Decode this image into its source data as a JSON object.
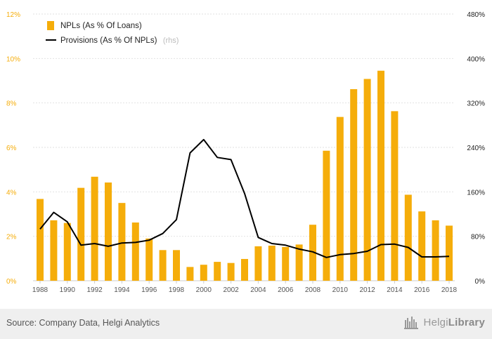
{
  "chart_data": {
    "type": "bar",
    "x": [
      1988,
      1989,
      1990,
      1991,
      1992,
      1993,
      1994,
      1995,
      1996,
      1997,
      1998,
      1999,
      2000,
      2001,
      2002,
      2003,
      2004,
      2005,
      2006,
      2007,
      2008,
      2009,
      2010,
      2011,
      2012,
      2013,
      2014,
      2015,
      2016,
      2017,
      2018
    ],
    "x_tick_labels": [
      "1988",
      "1990",
      "1992",
      "1994",
      "1996",
      "1998",
      "2000",
      "2002",
      "2004",
      "2006",
      "2008",
      "2010",
      "2012",
      "2014",
      "2016",
      "2018"
    ],
    "series": [
      {
        "name": "NPLs (As % Of Loans)",
        "type": "bar",
        "axis": "left",
        "color": "#f5ad0a",
        "values": [
          3.68,
          2.72,
          2.6,
          4.18,
          4.68,
          4.42,
          3.5,
          2.62,
          1.9,
          1.38,
          1.38,
          0.62,
          0.72,
          0.85,
          0.8,
          0.98,
          1.55,
          1.58,
          1.52,
          1.63,
          2.52,
          5.85,
          7.37,
          8.62,
          9.08,
          9.45,
          7.63,
          3.87,
          3.12,
          2.72,
          2.48
        ]
      },
      {
        "name": "Provisions (As % Of NPLs)",
        "type": "line",
        "axis": "right",
        "color": "#000000",
        "values": [
          93,
          123,
          106,
          64,
          67,
          62,
          68,
          69,
          73,
          85,
          110,
          230,
          254,
          222,
          218,
          157,
          78,
          67,
          64,
          57,
          52,
          42,
          47,
          49,
          53,
          65,
          66,
          60,
          43,
          43,
          44
        ]
      }
    ],
    "y_left": {
      "ylim": [
        0,
        12
      ],
      "ticks": [
        "0%",
        "2%",
        "4%",
        "6%",
        "8%",
        "10%",
        "12%"
      ],
      "color": "#f5ad0a"
    },
    "y_right": {
      "ylim": [
        0,
        480
      ],
      "ticks": [
        "0%",
        "80%",
        "160%",
        "240%",
        "320%",
        "400%",
        "480%"
      ]
    },
    "grid": true,
    "legend": {
      "position": "top-left",
      "items": [
        "NPLs (As % Of Loans)",
        "Provisions (As % Of NPLs)"
      ],
      "suffix": "(rhs)"
    }
  },
  "footer": {
    "source": "Source: Company Data, Helgi Analytics",
    "brand_light": "Helgi",
    "brand_bold": "Library"
  }
}
